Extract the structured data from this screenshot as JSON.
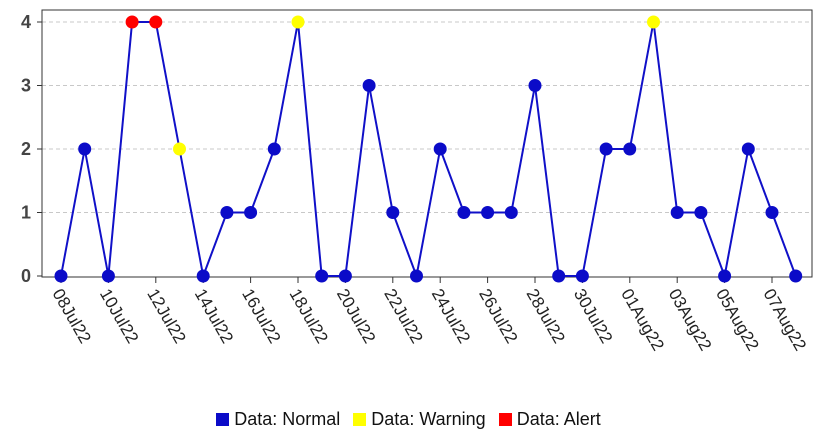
{
  "chart_data": {
    "type": "line",
    "title": "",
    "xlabel": "",
    "ylabel": "",
    "ylim": [
      0,
      4
    ],
    "yticks": [
      0,
      1,
      2,
      3,
      4
    ],
    "grid": true,
    "legend_position": "bottom",
    "line_color": "#1010c8",
    "xticks": [
      "08Jul22",
      "10Jul22",
      "12Jul22",
      "14Jul22",
      "16Jul22",
      "18Jul22",
      "20Jul22",
      "22Jul22",
      "24Jul22",
      "26Jul22",
      "28Jul22",
      "30Jul22",
      "01Aug22",
      "03Aug22",
      "05Aug22",
      "07Aug22"
    ],
    "x": [
      "2022-07-08",
      "2022-07-09",
      "2022-07-10",
      "2022-07-11",
      "2022-07-12",
      "2022-07-13",
      "2022-07-14",
      "2022-07-15",
      "2022-07-16",
      "2022-07-17",
      "2022-07-18",
      "2022-07-19",
      "2022-07-20",
      "2022-07-21",
      "2022-07-22",
      "2022-07-23",
      "2022-07-24",
      "2022-07-25",
      "2022-07-26",
      "2022-07-27",
      "2022-07-28",
      "2022-07-29",
      "2022-07-30",
      "2022-07-31",
      "2022-08-01",
      "2022-08-02",
      "2022-08-03",
      "2022-08-04",
      "2022-08-05",
      "2022-08-06",
      "2022-08-07",
      "2022-08-08"
    ],
    "values": [
      0,
      2,
      0,
      4,
      4,
      2,
      0,
      1,
      1,
      2,
      4,
      0,
      0,
      3,
      1,
      0,
      2,
      1,
      1,
      1,
      3,
      0,
      0,
      2,
      2,
      4,
      1,
      1,
      0,
      2,
      1,
      0
    ],
    "status": [
      "Normal",
      "Normal",
      "Normal",
      "Alert",
      "Alert",
      "Warning",
      "Normal",
      "Normal",
      "Normal",
      "Normal",
      "Warning",
      "Normal",
      "Normal",
      "Normal",
      "Normal",
      "Normal",
      "Normal",
      "Normal",
      "Normal",
      "Normal",
      "Normal",
      "Normal",
      "Normal",
      "Normal",
      "Normal",
      "Warning",
      "Normal",
      "Normal",
      "Normal",
      "Normal",
      "Normal",
      "Normal"
    ],
    "legend": [
      {
        "key": "Normal",
        "label": "Data: Normal",
        "color": "#0b0bc8"
      },
      {
        "key": "Warning",
        "label": "Data: Warning",
        "color": "#ffff00"
      },
      {
        "key": "Alert",
        "label": "Data: Alert",
        "color": "#ff0000"
      }
    ]
  }
}
